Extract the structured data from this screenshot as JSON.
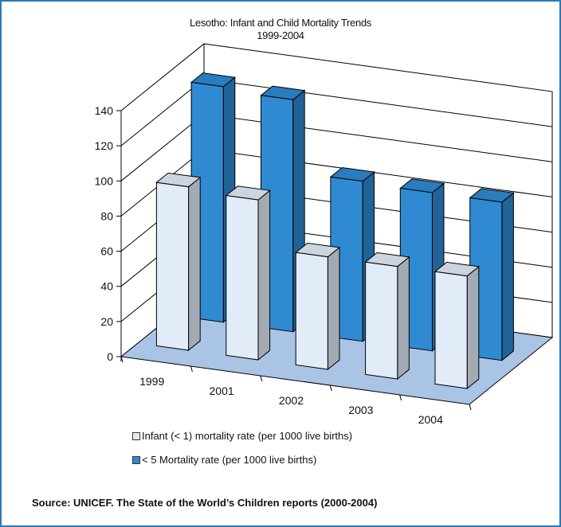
{
  "chart_data": {
    "type": "bar",
    "title": "Lesotho: Infant and Child Mortality Trends",
    "subtitle": "1999-2004",
    "categories": [
      "1999",
      "2001",
      "2002",
      "2003",
      "2004"
    ],
    "series": [
      {
        "name": "Infant (< 1) mortality rate (per 1000 live births)",
        "values": [
          93,
          91,
          64,
          64,
          64
        ],
        "color": "#e2ecf8"
      },
      {
        "name": "< 5 Mortality rate (per 1000 live births)",
        "values": [
          134,
          132,
          91,
          90,
          90
        ],
        "color": "#2f8ad2"
      }
    ],
    "yticks": [
      "0",
      "20",
      "40",
      "60",
      "80",
      "100",
      "120",
      "140"
    ],
    "ylim": [
      0,
      140
    ],
    "legend_position": "bottom",
    "three_d": true,
    "floor_color": "#aac4e6",
    "grid": true
  },
  "source": "Source: UNICEF.  The State of the World’s Children reports (2000-2004)"
}
